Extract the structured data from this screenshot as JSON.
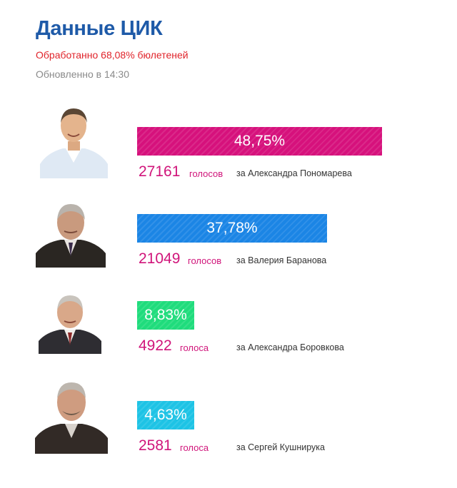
{
  "header": {
    "title": "Данные ЦИК",
    "processed": "Обработанно 68,08% бюлетеней",
    "updated": "Обновленно в 14:30"
  },
  "colors": {
    "title": "#1e5aa8",
    "processed": "#e0232a",
    "updated": "#8a8a8a",
    "votes": "#d0147a"
  },
  "chart_data": {
    "type": "bar",
    "categories": [
      "Александра Пономарева",
      "Валерия Баранова",
      "Александра Боровкова",
      "Сергей Кушнирука"
    ],
    "series": [
      {
        "values": [
          48.75,
          37.78,
          8.83,
          4.63
        ]
      }
    ],
    "votes": [
      27161,
      21049,
      4922,
      2581
    ],
    "bar_colors": [
      "#d6117c",
      "#1b85e5",
      "#1fdc7c",
      "#1dc3e5"
    ]
  },
  "candidates": [
    {
      "percent_label": "48,75%",
      "votes_label": "27161",
      "votes_word": "голосов",
      "for_label": "за Александра Пономарева"
    },
    {
      "percent_label": "37,78%",
      "votes_label": "21049",
      "votes_word": "голосов",
      "for_label": "за Валерия Баранова"
    },
    {
      "percent_label": "8,83%",
      "votes_label": "4922",
      "votes_word": "голоса",
      "for_label": "за Александра Боровкова"
    },
    {
      "percent_label": "4,63%",
      "votes_label": "2581",
      "votes_word": "голоса",
      "for_label": "за Сергей Кушнирука"
    }
  ]
}
